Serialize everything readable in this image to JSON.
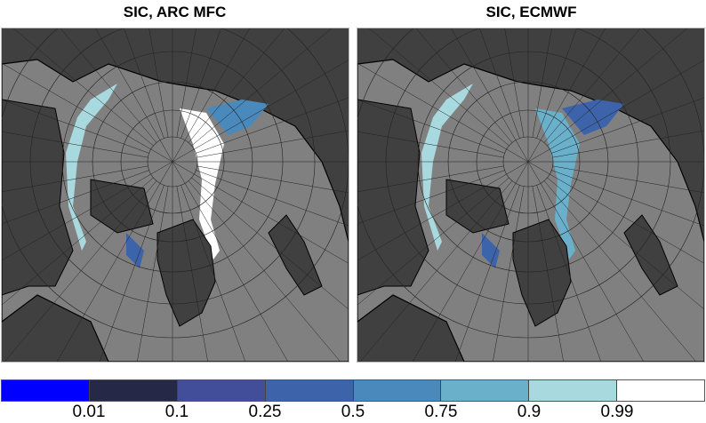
{
  "panels": [
    {
      "title": "SIC, ARC MFC"
    },
    {
      "title": "SIC, ECMWF"
    }
  ],
  "colorbar": {
    "colors": [
      "#0000ff",
      "#262848",
      "#424e9a",
      "#3d64ab",
      "#4a89bb",
      "#6ab0cb",
      "#a8d9de",
      "#ffffff"
    ],
    "tick_labels": [
      "0.01",
      "0.1",
      "0.25",
      "0.5",
      "0.75",
      "0.9",
      "0.99"
    ]
  },
  "map_colors": {
    "land": "#404040",
    "ocean": "#808080",
    "coast": "#000000"
  }
}
